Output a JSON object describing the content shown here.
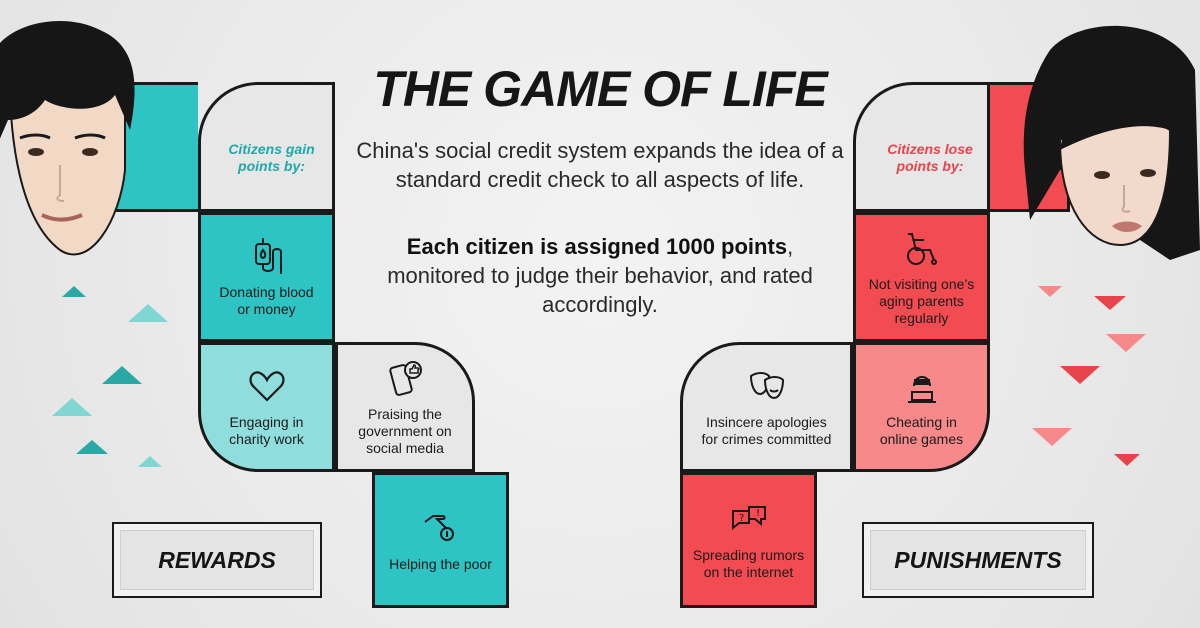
{
  "title": "THE GAME OF LIFE",
  "intro": "China's social credit system expands the idea of a standard credit check to all aspects of life.",
  "points_bold": "Each citizen is assigned 1000 points",
  "points_rest": ", monitored to judge their behavior, and rated accordingly.",
  "rewards": {
    "header": "Citizens gain points by:",
    "badge": "REWARDS",
    "items": [
      {
        "label": "Donating blood or money",
        "icon": "blood-bag-icon"
      },
      {
        "label": "Engaging in charity work",
        "icon": "heart-icon"
      },
      {
        "label": "Praising the government on social media",
        "icon": "phone-thumbs-up-icon"
      },
      {
        "label": "Helping the poor",
        "icon": "hand-coin-icon"
      }
    ]
  },
  "punishments": {
    "header": "Citizens lose points by:",
    "badge": "PUNISHMENTS",
    "items": [
      {
        "label": "Not visiting one’s aging parents regularly",
        "icon": "wheelchair-icon"
      },
      {
        "label": "Cheating in online games",
        "icon": "hacker-icon"
      },
      {
        "label": "Insincere apologies for crimes committed",
        "icon": "theater-masks-icon"
      },
      {
        "label": "Spreading rumors on the internet",
        "icon": "speech-bubbles-icon"
      }
    ]
  },
  "colors": {
    "teal": "#2ec4c4",
    "teal_light": "#8fdedd",
    "red": "#f24b51",
    "red_light": "#f7898b",
    "ink": "#161616"
  }
}
